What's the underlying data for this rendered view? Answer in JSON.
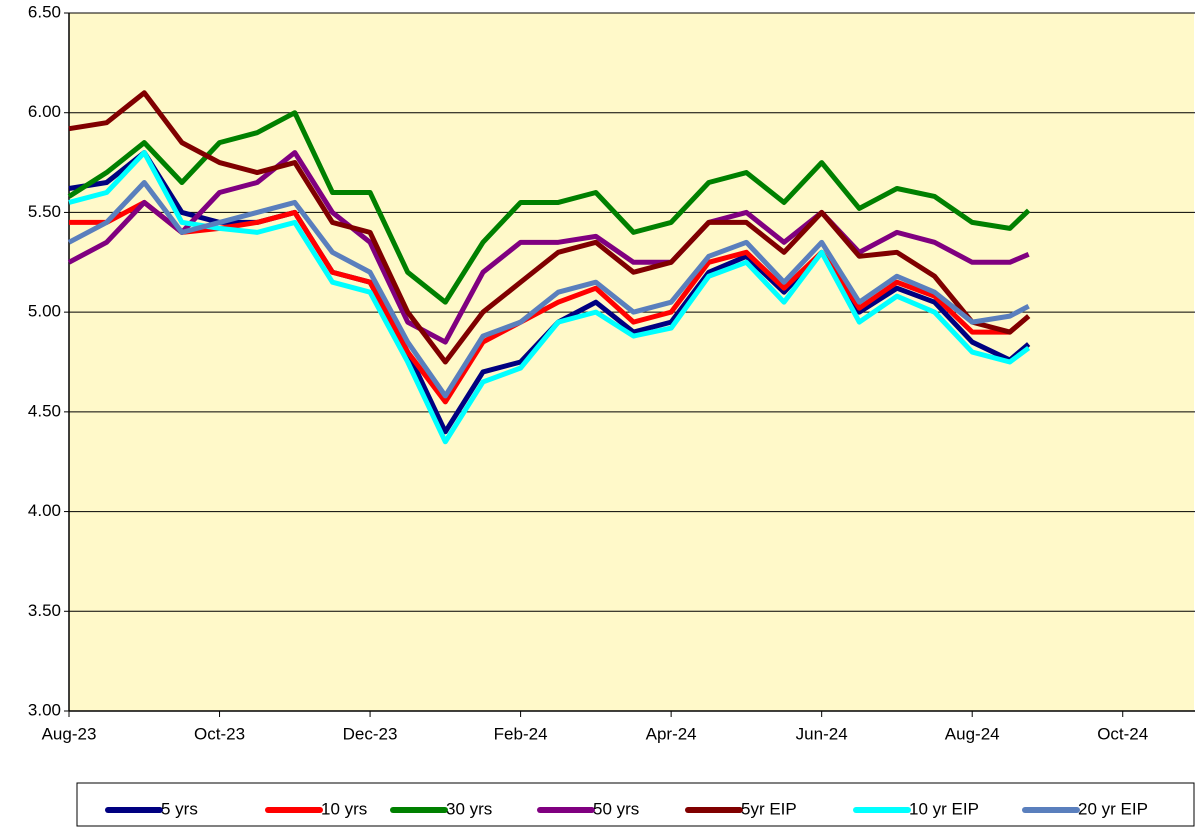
{
  "chart_data": {
    "type": "line",
    "x": [
      0,
      0.5,
      1,
      1.5,
      2,
      2.5,
      3,
      3.5,
      4,
      4.5,
      5,
      5.5,
      6,
      6.5,
      7,
      7.5,
      8,
      8.5,
      9,
      9.5,
      10,
      10.5,
      11,
      11.5,
      12,
      12.5,
      12.75
    ],
    "xlim": [
      0,
      15
    ],
    "xticks": [
      {
        "value": 0,
        "label": "Aug-23"
      },
      {
        "value": 2,
        "label": "Oct-23"
      },
      {
        "value": 4,
        "label": "Dec-23"
      },
      {
        "value": 6,
        "label": "Feb-24"
      },
      {
        "value": 8,
        "label": "Apr-24"
      },
      {
        "value": 10,
        "label": "Jun-24"
      },
      {
        "value": 12,
        "label": "Aug-24"
      },
      {
        "value": 14,
        "label": "Oct-24"
      }
    ],
    "ylim": [
      3,
      6.5
    ],
    "yticks": [
      {
        "value": 3,
        "label": "3.00"
      },
      {
        "value": 3.5,
        "label": "3.50"
      },
      {
        "value": 4,
        "label": "4.00"
      },
      {
        "value": 4.5,
        "label": "4.50"
      },
      {
        "value": 5,
        "label": "5.00"
      },
      {
        "value": 5.5,
        "label": "5.50"
      },
      {
        "value": 6,
        "label": "6.00"
      },
      {
        "value": 6.5,
        "label": "6.50"
      }
    ],
    "grid": true,
    "series": [
      {
        "name": "5 yrs",
        "color": "#000080",
        "values": [
          5.62,
          5.65,
          5.8,
          5.5,
          5.45,
          5.45,
          5.5,
          5.2,
          5.15,
          4.8,
          4.4,
          4.7,
          4.75,
          4.95,
          5.05,
          4.9,
          4.95,
          5.2,
          5.28,
          5.1,
          5.3,
          5.0,
          5.12,
          5.05,
          4.85,
          4.76,
          4.84
        ]
      },
      {
        "name": "10 yrs",
        "color": "#ff0000",
        "values": [
          5.45,
          5.45,
          5.55,
          5.4,
          5.42,
          5.45,
          5.5,
          5.2,
          5.15,
          4.8,
          4.55,
          4.85,
          4.95,
          5.05,
          5.12,
          4.95,
          5.0,
          5.25,
          5.3,
          5.12,
          5.3,
          5.02,
          5.15,
          5.08,
          4.9,
          4.9,
          4.98
        ]
      },
      {
        "name": "30 yrs",
        "color": "#008000",
        "values": [
          5.58,
          5.7,
          5.85,
          5.65,
          5.85,
          5.9,
          6.0,
          5.6,
          5.6,
          5.2,
          5.05,
          5.35,
          5.55,
          5.55,
          5.6,
          5.4,
          5.45,
          5.65,
          5.7,
          5.55,
          5.75,
          5.52,
          5.62,
          5.58,
          5.45,
          5.42,
          5.51
        ]
      },
      {
        "name": "50 yrs",
        "color": "#800080",
        "values": [
          5.25,
          5.35,
          5.55,
          5.4,
          5.6,
          5.65,
          5.8,
          5.5,
          5.35,
          4.95,
          4.85,
          5.2,
          5.35,
          5.35,
          5.38,
          5.25,
          5.25,
          5.45,
          5.5,
          5.35,
          5.5,
          5.3,
          5.4,
          5.35,
          5.25,
          5.25,
          5.29
        ]
      },
      {
        "name": "5yr EIP",
        "color": "#800000",
        "values": [
          5.92,
          5.95,
          6.1,
          5.85,
          5.75,
          5.7,
          5.75,
          5.45,
          5.4,
          5.0,
          4.75,
          5.0,
          5.15,
          5.3,
          5.35,
          5.2,
          5.25,
          5.45,
          5.45,
          5.3,
          5.5,
          5.28,
          5.3,
          5.18,
          4.95,
          4.9,
          4.98
        ]
      },
      {
        "name": "10 yr EIP",
        "color": "#00ffff",
        "values": [
          5.55,
          5.6,
          5.8,
          5.45,
          5.42,
          5.4,
          5.45,
          5.15,
          5.1,
          4.75,
          4.35,
          4.65,
          4.72,
          4.95,
          5.0,
          4.88,
          4.92,
          5.18,
          5.25,
          5.05,
          5.3,
          4.95,
          5.08,
          5.0,
          4.8,
          4.75,
          4.82
        ]
      },
      {
        "name": "20 yr EIP",
        "color": "#5a7fbd",
        "values": [
          5.35,
          5.45,
          5.65,
          5.4,
          5.45,
          5.5,
          5.55,
          5.3,
          5.2,
          4.85,
          4.58,
          4.88,
          4.95,
          5.1,
          5.15,
          5.0,
          5.05,
          5.28,
          5.35,
          5.15,
          5.35,
          5.05,
          5.18,
          5.1,
          4.95,
          4.98,
          5.03
        ]
      }
    ]
  }
}
